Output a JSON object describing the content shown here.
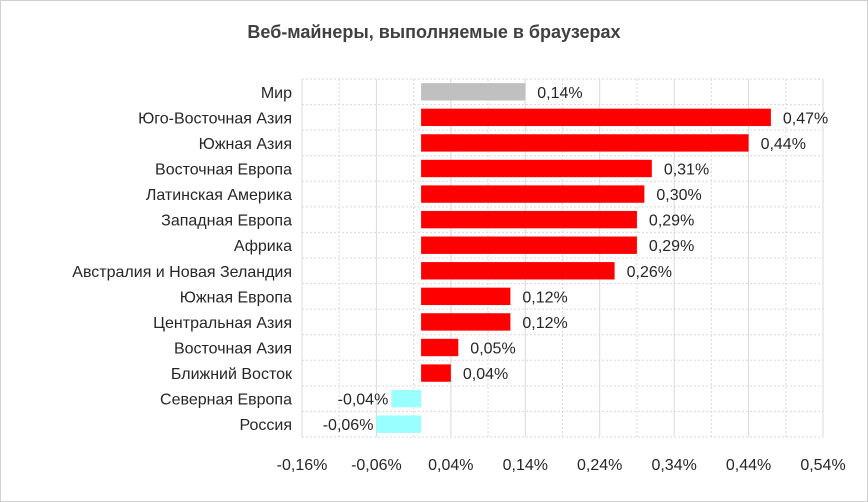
{
  "chart_data": {
    "type": "bar",
    "orientation": "horizontal",
    "title": "Веб-майнеры, выполняемые в браузерах",
    "xlabel": "",
    "ylabel": "",
    "categories": [
      "Мир",
      "Юго-Восточная Азия",
      "Южная Азия",
      "Восточная Европа",
      "Латинская Америка",
      "Западная Европа",
      "Африка",
      "Австралия и Новая Зеландия",
      "Южная Европа",
      "Центральная Азия",
      "Восточная Азия",
      "Ближний Восток",
      "Северная Европа",
      "Россия"
    ],
    "values": [
      0.14,
      0.47,
      0.44,
      0.31,
      0.3,
      0.29,
      0.29,
      0.26,
      0.12,
      0.12,
      0.05,
      0.04,
      -0.04,
      -0.06
    ],
    "data_labels": [
      "0,14%",
      "0,47%",
      "0,44%",
      "0,31%",
      "0,30%",
      "0,29%",
      "0,29%",
      "0,26%",
      "0,12%",
      "0,12%",
      "0,05%",
      "0,04%",
      "-0,04%",
      "-0,06%"
    ],
    "xlim": [
      -0.16,
      0.54
    ],
    "x_ticks": [
      -0.16,
      -0.06,
      0.04,
      0.14,
      0.24,
      0.34,
      0.44,
      0.54
    ],
    "x_tick_labels": [
      "-0,16%",
      "-0,06%",
      "0,04%",
      "0,14%",
      "0,24%",
      "0,34%",
      "0,44%",
      "0,54%"
    ],
    "grid": true,
    "colors": {
      "world": "#c0c0c0",
      "positive": "#ff0000",
      "negative": "#99ffff",
      "grid": "#d9d9d9"
    }
  }
}
